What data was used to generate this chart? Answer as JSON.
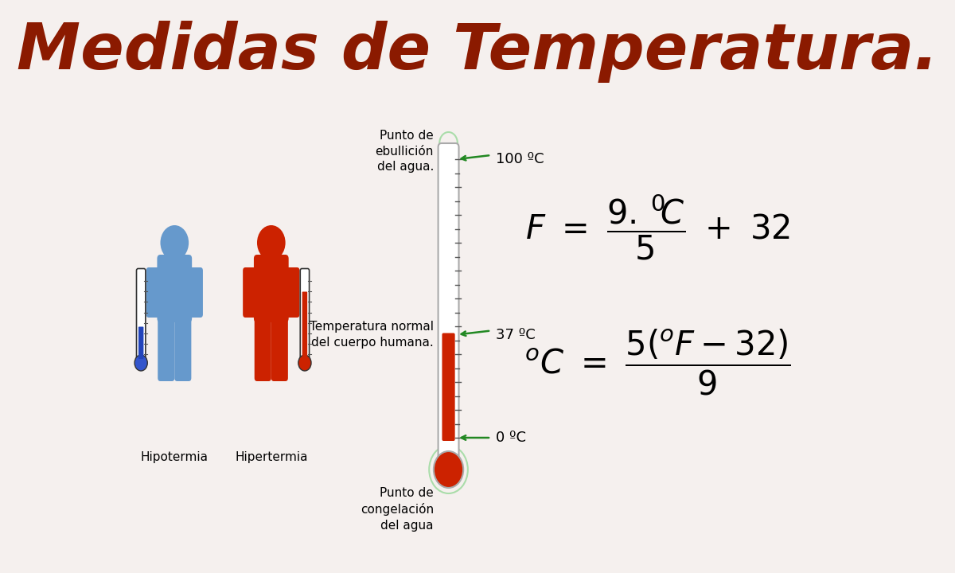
{
  "title": "Medidas de Temperatura.",
  "title_color": "#8B1A00",
  "title_fontsize": 58,
  "bg_color": "#F5F0EE",
  "formula1": "F = \\frac{9.\\,^{0}\\!C}{5} + 32",
  "formula2": "^{o}C = \\frac{5(^{o}F-32)}{9}",
  "label_ebullicion": "Punto de\nebullición\ndel agua.",
  "label_normal": "Temperatura normal\ndel cuerpo humana.",
  "label_congelacion": "Punto de\ncongelación\ndel agua",
  "label_100": "100 ºC",
  "label_37": "37 ºC",
  "label_0": "0 ºC",
  "label_hipotermia": "Hipotermia",
  "label_hipertermia": "Hipertermia",
  "thermo_color_hot": "#CC2200",
  "thermo_color_cool": "#4488FF",
  "arrow_color": "#228822"
}
